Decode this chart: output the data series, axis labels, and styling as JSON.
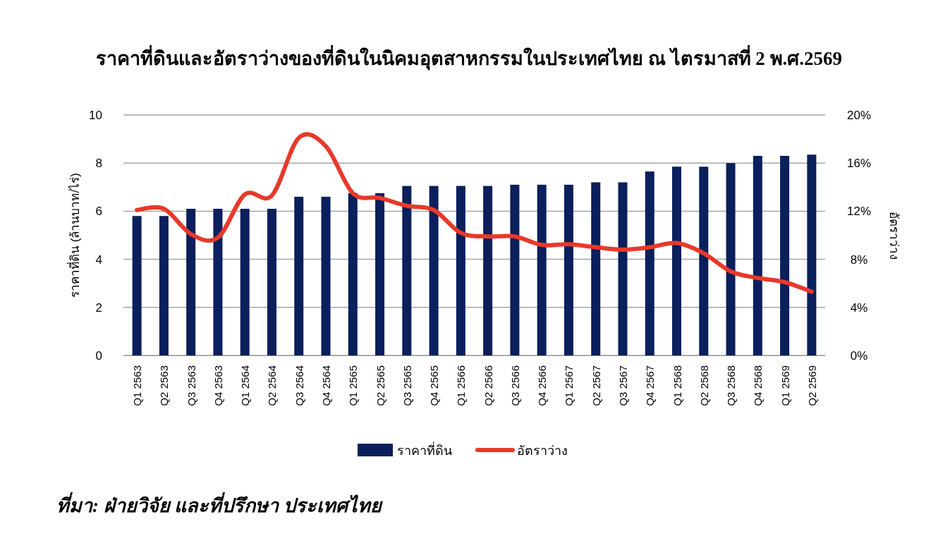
{
  "chart_data": {
    "type": "bar",
    "title": "ราคาที่ดินและอัตราว่างของที่ดินในนิคมอุตสาหกรรมในประเทศไทย ณ ไตรมาสที่ 2 พ.ศ.2569",
    "categories": [
      "Q1 2563",
      "Q2 2563",
      "Q3 2563",
      "Q4 2563",
      "Q1 2564",
      "Q2 2564",
      "Q3 2564",
      "Q4 2564",
      "Q1 2565",
      "Q2 2565",
      "Q3 2565",
      "Q4 2565",
      "Q1 2566",
      "Q2 2566",
      "Q3 2566",
      "Q4 2566",
      "Q1 2567",
      "Q2 2567",
      "Q3 2567",
      "Q4 2567",
      "Q1 2568",
      "Q2 2568",
      "Q3 2568",
      "Q4 2568",
      "Q1 2569",
      "Q2 2569"
    ],
    "series": [
      {
        "name": "ราคาที่ดิน",
        "color": "#0a1f5c",
        "values": [
          5.8,
          5.8,
          6.1,
          6.1,
          6.1,
          6.1,
          6.6,
          6.6,
          6.75,
          6.75,
          7.05,
          7.05,
          7.05,
          7.05,
          7.1,
          7.1,
          7.1,
          7.2,
          7.2,
          7.65,
          7.85,
          7.85,
          8.0,
          8.3,
          8.3,
          8.35
        ]
      },
      {
        "name": "อัตราว่าง",
        "type": "line",
        "axis": "y2",
        "color": "#e8392a",
        "values": [
          12.1,
          12.2,
          10.1,
          9.8,
          13.4,
          13.3,
          18.1,
          17.4,
          13.5,
          13.1,
          12.45,
          12.1,
          10.2,
          9.9,
          9.9,
          9.2,
          9.25,
          9.0,
          8.8,
          9.0,
          9.35,
          8.5,
          7.0,
          6.45,
          6.1,
          5.3
        ]
      }
    ],
    "ylabel": "ราคาที่ดิน (ล้านบาท/ไร่)",
    "y2label": "อัตราว่าง",
    "ylim": [
      0,
      10
    ],
    "yticks": [
      0,
      2,
      4,
      6,
      8,
      10
    ],
    "y2lim": [
      0,
      20
    ],
    "y2ticks": [
      {
        "value": 0,
        "label": "0%"
      },
      {
        "value": 4,
        "label": "4%"
      },
      {
        "value": 8,
        "label": "8%"
      },
      {
        "value": 12,
        "label": "12%"
      },
      {
        "value": 16,
        "label": "16%"
      },
      {
        "value": 20,
        "label": "20%"
      }
    ],
    "grid": "y",
    "legend": "bottom",
    "annotations": [
      "ที่มา: ฝ่ายวิจัย และที่ปรึกษา ประเทศไทย"
    ]
  }
}
